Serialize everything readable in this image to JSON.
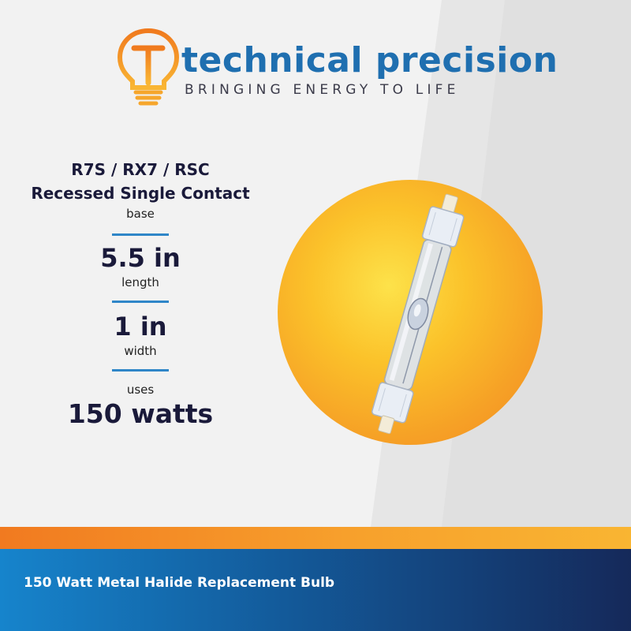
{
  "brand": {
    "name": "technical precision",
    "tagline": "BRINGING ENERGY TO LIFE",
    "logo_icon": "lightbulb-t-icon",
    "colors": {
      "primary": "#1f6fb0",
      "accent_orange": "#f39a2a"
    }
  },
  "specs": {
    "base_types": "R7S / RX7 / RSC",
    "base_name": "Recessed Single Contact",
    "base_label": "base",
    "length_value": "5.5 in",
    "length_label": "length",
    "width_value": "1 in",
    "width_label": "width",
    "uses_label": "uses",
    "watts_value": "150 watts"
  },
  "product_image": "metal-halide-double-ended-bulb",
  "footer": {
    "text": "150 Watt Metal Halide Replacement Bulb",
    "colors": {
      "orange": "#f39a2a",
      "blue_start": "#1684cc",
      "blue_end": "#15295a"
    }
  }
}
